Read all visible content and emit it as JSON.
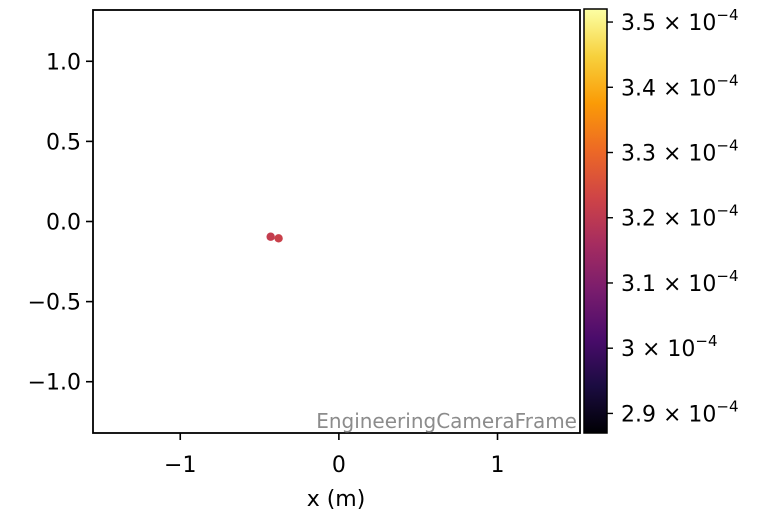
{
  "chart_data": {
    "type": "scatter",
    "title": "",
    "xlabel": "x  (m)",
    "ylabel": "",
    "xlim": [
      -1.55,
      1.52
    ],
    "ylim": [
      -1.32,
      1.32
    ],
    "x_ticks": [
      -1,
      0,
      1
    ],
    "x_tick_labels": [
      "−1",
      "0",
      "1"
    ],
    "y_ticks": [
      1.0,
      0.5,
      0.0,
      -0.5,
      -1.0
    ],
    "y_tick_labels": [
      "1.0",
      "0.5",
      "0.0",
      "−0.5",
      "−1.0"
    ],
    "points": [
      {
        "x": -0.43,
        "y": -0.095,
        "c": 0.000321
      },
      {
        "x": -0.38,
        "y": -0.105,
        "c": 0.000322
      }
    ],
    "annotation": "EngineeringCameraFrame",
    "grid": false,
    "colorbar": {
      "colormap": "inferno",
      "range": [
        0.000287,
        0.000352
      ],
      "ticks": [
        {
          "value": 0.00029,
          "mantissa": "2.9",
          "base": "× 10",
          "exponent": "−4"
        },
        {
          "value": 0.0003,
          "mantissa": "3",
          "base": "× 10",
          "exponent": "−4"
        },
        {
          "value": 0.00031,
          "mantissa": "3.1",
          "base": "× 10",
          "exponent": "−4"
        },
        {
          "value": 0.00032,
          "mantissa": "3.2",
          "base": "× 10",
          "exponent": "−4"
        },
        {
          "value": 0.00033,
          "mantissa": "3.3",
          "base": "× 10",
          "exponent": "−4"
        },
        {
          "value": 0.00034,
          "mantissa": "3.4",
          "base": "× 10",
          "exponent": "−4"
        },
        {
          "value": 0.00035,
          "mantissa": "3.5",
          "base": "× 10",
          "exponent": "−4"
        }
      ]
    },
    "colors": {
      "inferno": [
        "#000004",
        "#1b0c41",
        "#4a0c6b",
        "#781c6d",
        "#a52c60",
        "#cf4446",
        "#ed6925",
        "#fb9b06",
        "#f7d13d",
        "#fcffa4"
      ]
    }
  }
}
